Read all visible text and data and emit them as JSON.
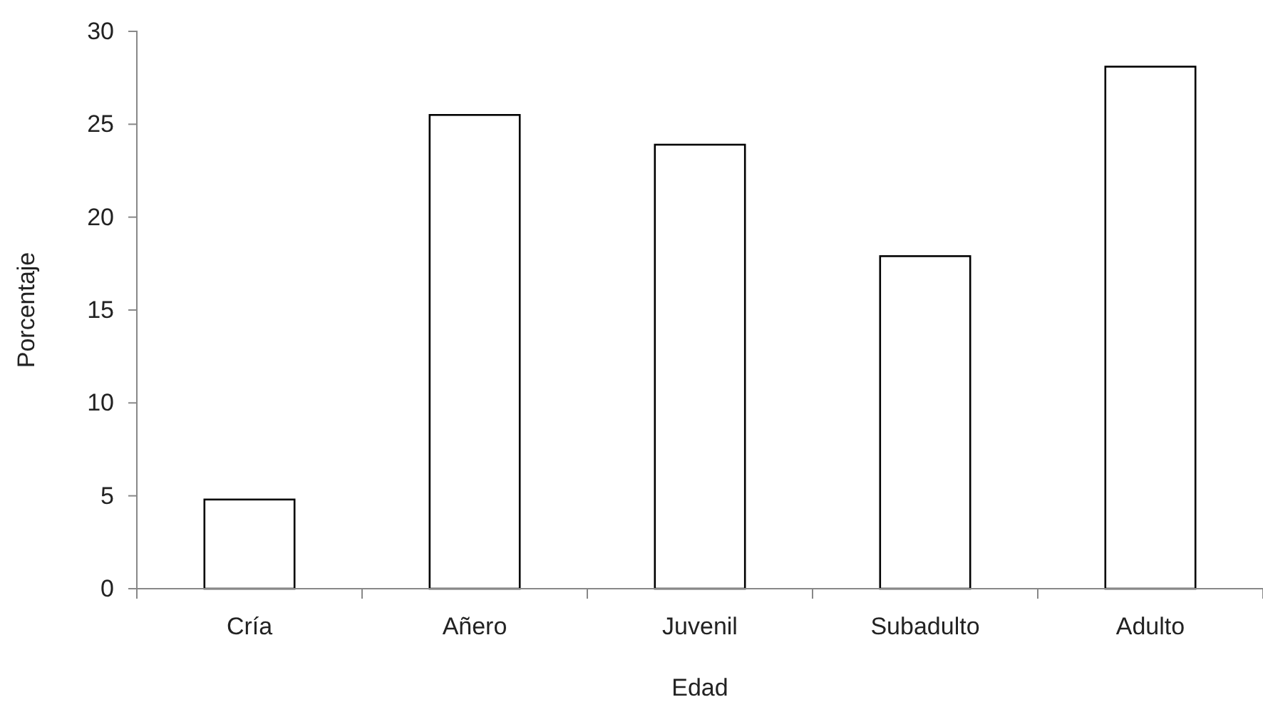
{
  "chart_data": {
    "type": "bar",
    "xlabel": "Edad",
    "ylabel": "Porcentaje",
    "categories": [
      "Cría",
      "Añero",
      "Juvenil",
      "Subadulto",
      "Adulto"
    ],
    "values": [
      4.8,
      25.5,
      23.9,
      17.9,
      28.1
    ],
    "color": "#ffffff",
    "ylim": [
      0,
      30
    ],
    "yticks": [
      0,
      5,
      10,
      15,
      20,
      25,
      30
    ],
    "grid": false
  }
}
